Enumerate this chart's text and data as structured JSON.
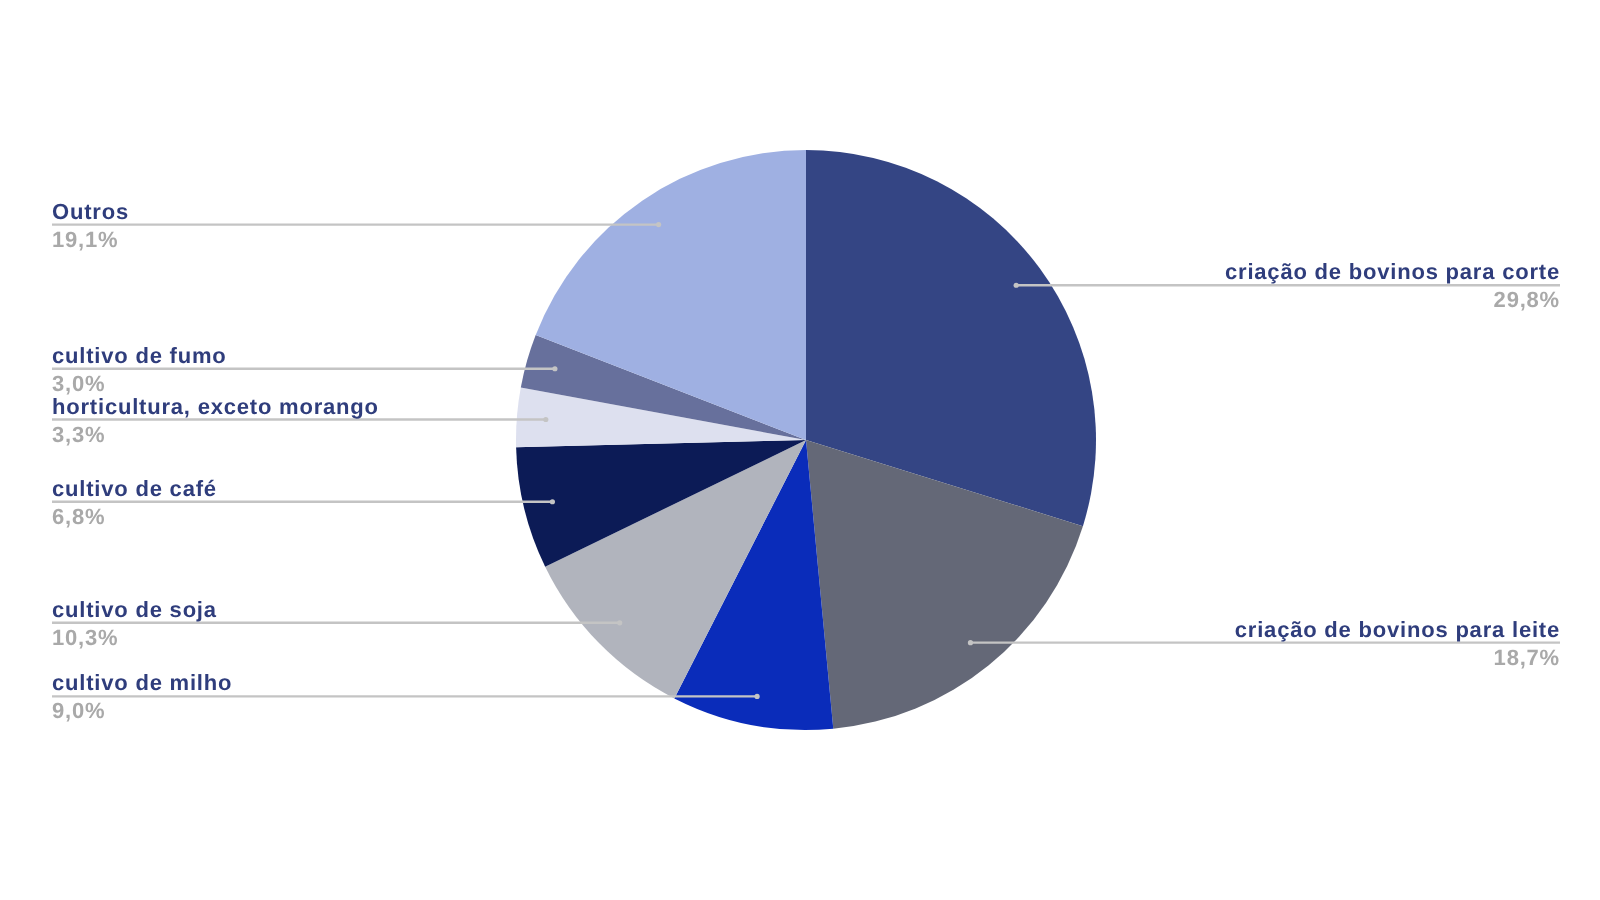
{
  "chart_data": {
    "type": "pie",
    "categories": [
      "criação de bovinos para corte",
      "criação de bovinos para leite",
      "cultivo de milho",
      "cultivo de soja",
      "cultivo de café",
      "horticultura, exceto morango",
      "cultivo de fumo",
      "Outros"
    ],
    "values": [
      29.8,
      18.7,
      9.0,
      10.3,
      6.8,
      3.3,
      3.0,
      19.1
    ],
    "colors": [
      "#344584",
      "#646877",
      "#0a2cba",
      "#b1b4bd",
      "#0c1b56",
      "#dde0ef",
      "#67709c",
      "#9fb0e2"
    ],
    "value_labels": [
      "29,8%",
      "18,7%",
      "9,0%",
      "10,3%",
      "6,8%",
      "3,3%",
      "3,0%",
      "19,1%"
    ]
  }
}
